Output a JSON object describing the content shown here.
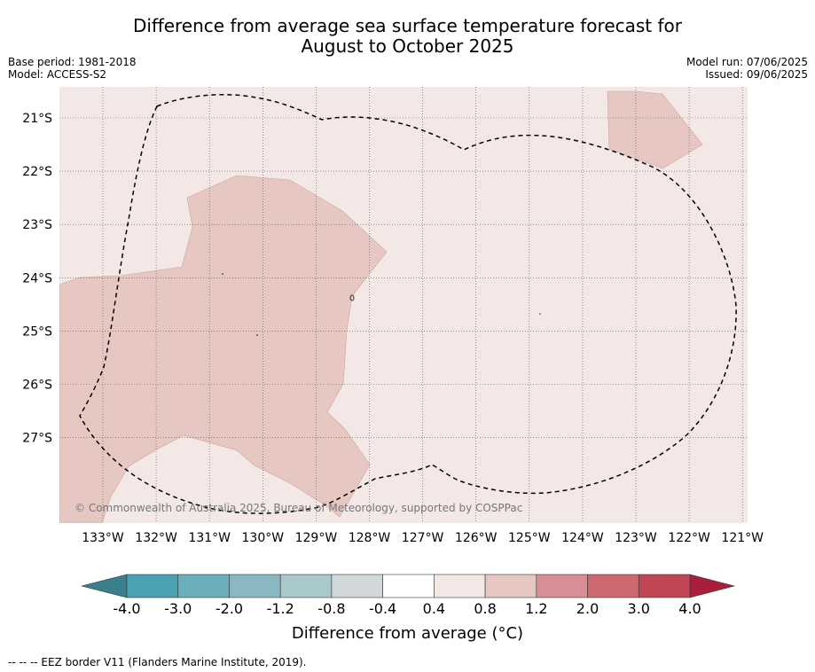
{
  "title_line1": "Difference from average sea surface temperature forecast for",
  "title_line2": "August to October 2025",
  "base_period": "Base period: 1981-2018",
  "model": "Model: ACCESS-S2",
  "model_run": "Model run: 07/06/2025",
  "issued": "Issued: 09/06/2025",
  "copyright": "© Commonwealth of Australia 2025, Bureau of Meteorology, supported by COSPPac",
  "lon_labels": [
    "133°W",
    "132°W",
    "131°W",
    "130°W",
    "129°W",
    "128°W",
    "127°W",
    "126°W",
    "125°W",
    "124°W",
    "123°W",
    "122°W",
    "121°W"
  ],
  "lat_labels": [
    "21°S",
    "22°S",
    "23°S",
    "24°S",
    "25°S",
    "26°S",
    "27°S"
  ],
  "colorbar": {
    "title": "Difference from average (°C)",
    "labels": [
      "-4.0",
      "-3.0",
      "-2.0",
      "-1.2",
      "-0.8",
      "-0.4",
      "0.4",
      "0.8",
      "1.2",
      "2.0",
      "3.0",
      "4.0"
    ],
    "colors": [
      "#3a7f8c",
      "#4aa1b2",
      "#6aadbb",
      "#8ab7c2",
      "#a9c8cc",
      "#d2d7d9",
      "#ffffff",
      "#f4e8e7",
      "#e7c7c2",
      "#d98e95",
      "#cc6870",
      "#c04856",
      "#a91f3b"
    ]
  },
  "footnote": "--  --  -- EEZ border V11 (Flanders Marine Institute, 2019).",
  "map_colors": {
    "background": "#f4e8e7",
    "anomaly_patch": "#e7c7c2",
    "grid": "#555555"
  }
}
